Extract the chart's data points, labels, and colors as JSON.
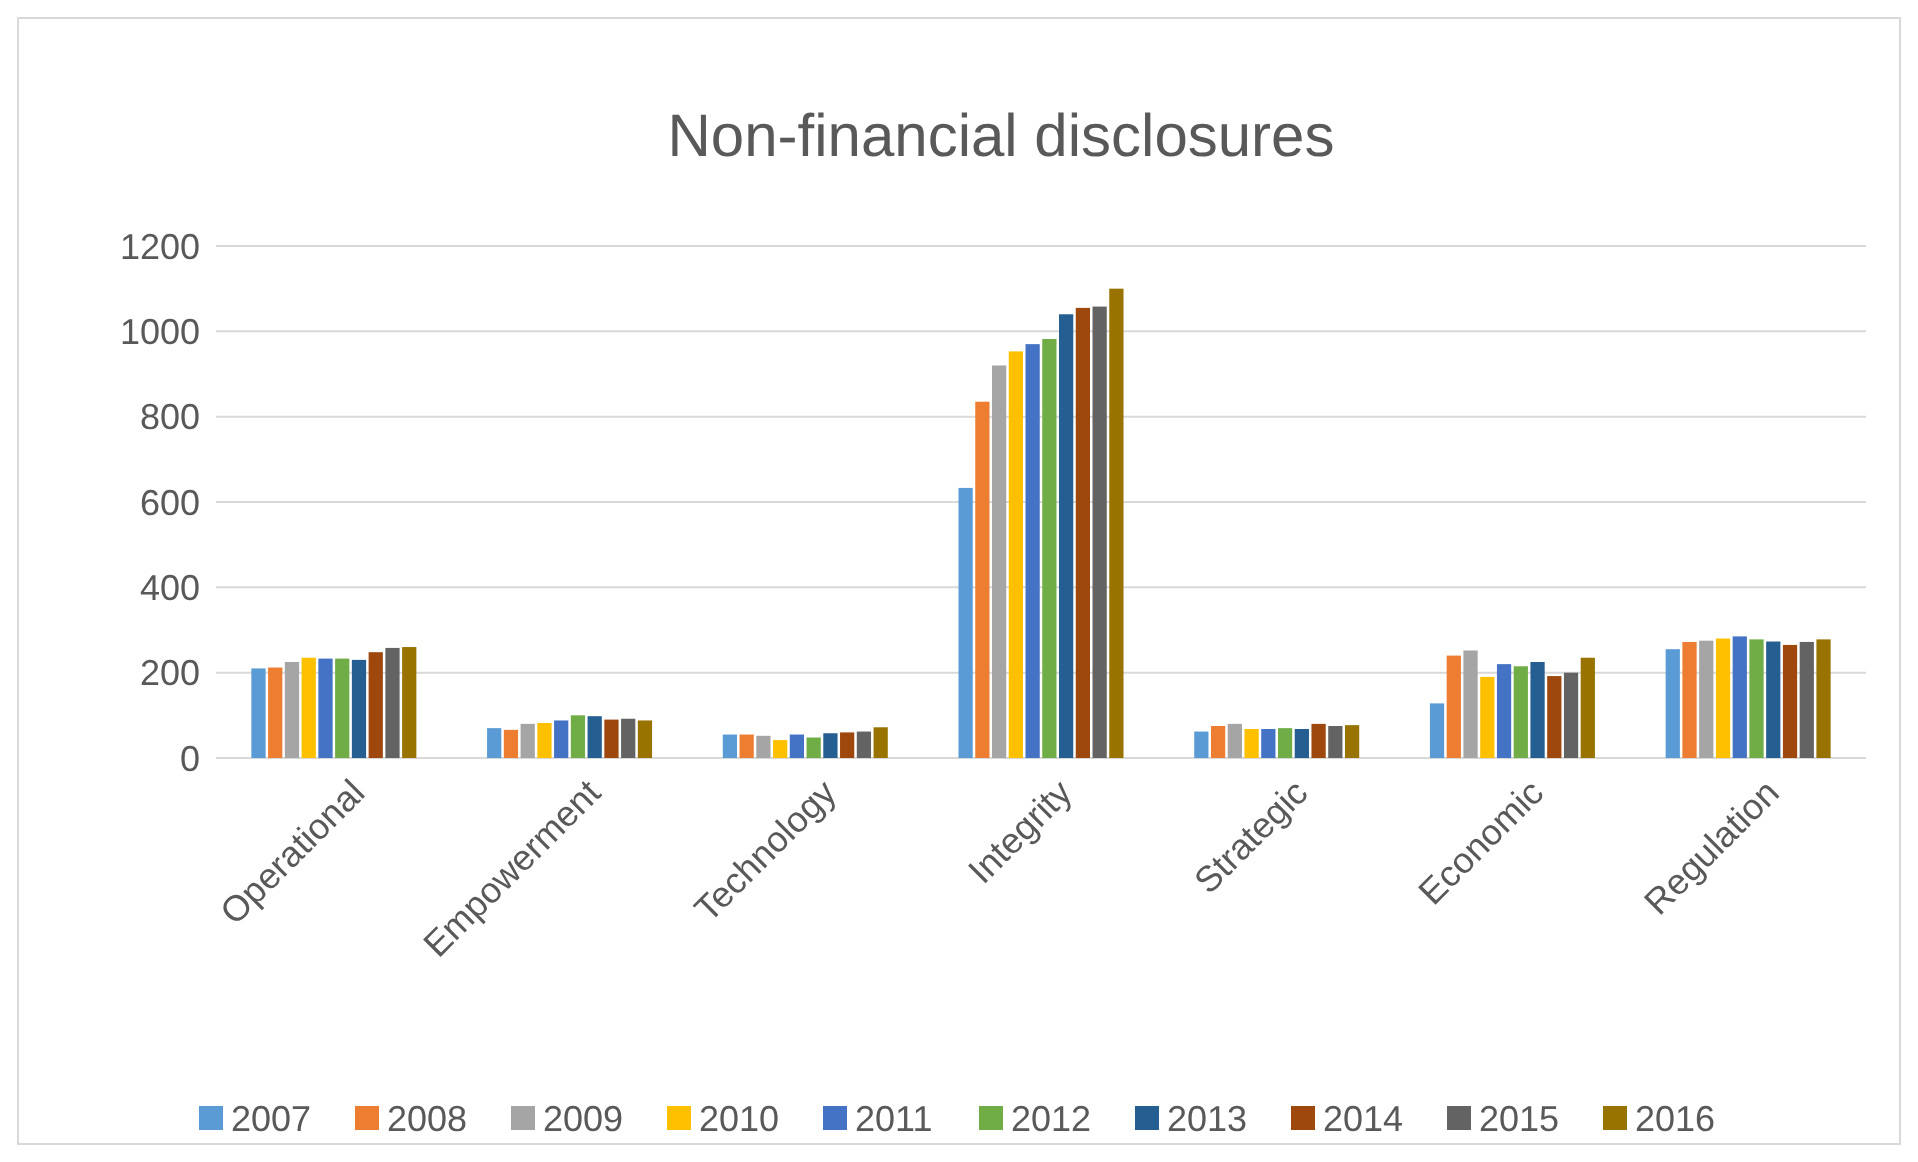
{
  "chart_data": {
    "type": "bar",
    "title": "Non-financial disclosures",
    "categories": [
      "Operational",
      "Empowerment",
      "Technology",
      "Integrity",
      "Strategic",
      "Economic",
      "Regulation"
    ],
    "series": [
      {
        "name": "2007",
        "color": "#5b9bd5",
        "values": [
          210,
          70,
          55,
          633,
          62,
          128,
          255
        ]
      },
      {
        "name": "2008",
        "color": "#ed7d31",
        "values": [
          212,
          66,
          55,
          835,
          75,
          240,
          272
        ]
      },
      {
        "name": "2009",
        "color": "#a5a5a5",
        "values": [
          225,
          80,
          52,
          920,
          80,
          252,
          275
        ]
      },
      {
        "name": "2010",
        "color": "#ffc000",
        "values": [
          235,
          82,
          42,
          953,
          68,
          190,
          280
        ]
      },
      {
        "name": "2011",
        "color": "#4472c4",
        "values": [
          233,
          88,
          55,
          970,
          68,
          220,
          285
        ]
      },
      {
        "name": "2012",
        "color": "#70ad47",
        "values": [
          233,
          100,
          48,
          982,
          70,
          215,
          278
        ]
      },
      {
        "name": "2013",
        "color": "#255e91",
        "values": [
          230,
          98,
          58,
          1040,
          68,
          225,
          273
        ]
      },
      {
        "name": "2014",
        "color": "#9e480e",
        "values": [
          248,
          90,
          60,
          1055,
          80,
          192,
          265
        ]
      },
      {
        "name": "2015",
        "color": "#636363",
        "values": [
          258,
          92,
          62,
          1058,
          75,
          200,
          272
        ]
      },
      {
        "name": "2016",
        "color": "#997300",
        "values": [
          260,
          88,
          72,
          1100,
          77,
          235,
          278
        ]
      }
    ],
    "ylim": [
      0,
      1200
    ],
    "yticks": [
      0,
      200,
      400,
      600,
      800,
      1000,
      1200
    ],
    "grid": "y",
    "legend": "bottom"
  }
}
